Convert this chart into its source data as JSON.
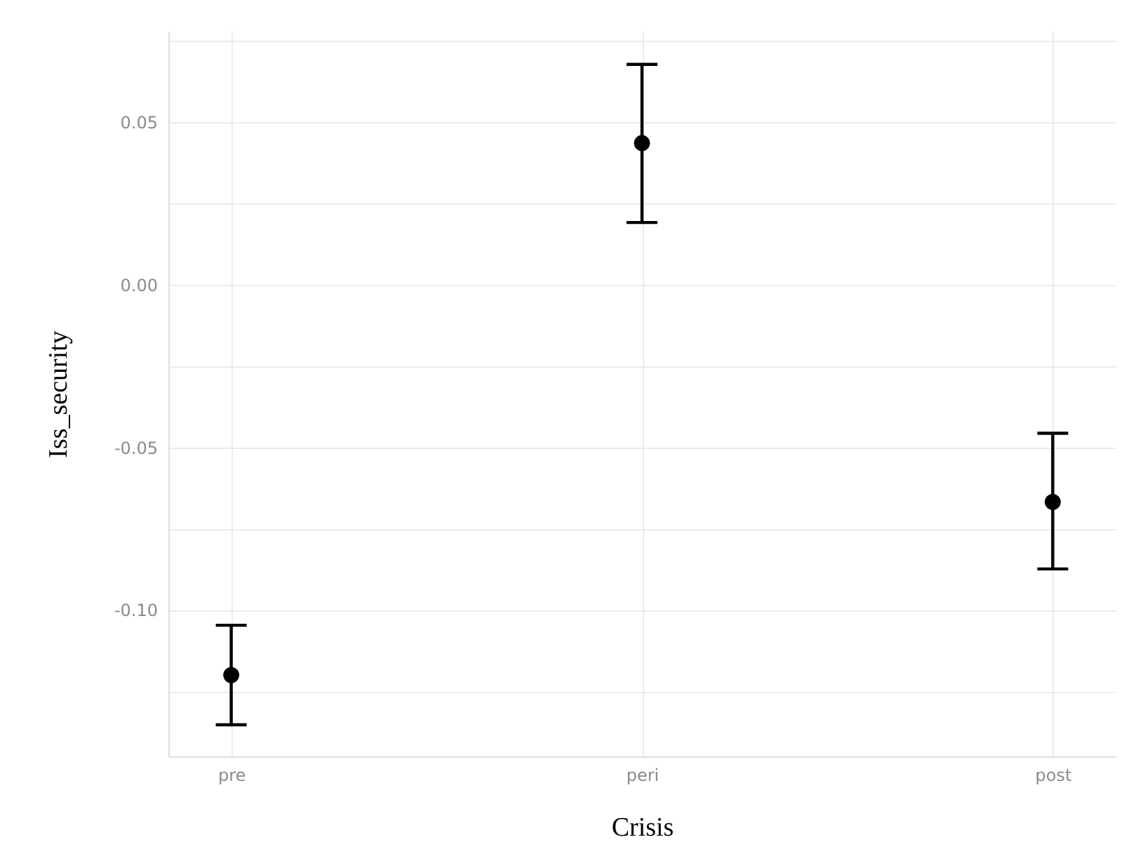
{
  "chart_data": {
    "type": "scatter",
    "xlabel": "Crisis",
    "ylabel": "Iss_security",
    "categories": [
      "pre",
      "peri",
      "post"
    ],
    "values": [
      -0.12,
      0.0435,
      -0.0668
    ],
    "errors": [
      [
        -0.1353,
        -0.1047
      ],
      [
        0.0191,
        0.0677
      ],
      [
        -0.0874,
        -0.0457
      ]
    ],
    "color": "#000000",
    "marker": "circle",
    "grid": true,
    "ylim": [
      -0.145,
      0.078
    ],
    "yticks": [
      {
        "value": -0.125,
        "label": null
      },
      {
        "value": -0.1,
        "label": "-0.10"
      },
      {
        "value": -0.075,
        "label": null
      },
      {
        "value": -0.05,
        "label": "-0.05"
      },
      {
        "value": -0.025,
        "label": null
      },
      {
        "value": 0,
        "label": "0.00"
      },
      {
        "value": 0.025,
        "label": null
      },
      {
        "value": 0.05,
        "label": "0.05"
      },
      {
        "value": 0.075,
        "label": null
      }
    ]
  }
}
